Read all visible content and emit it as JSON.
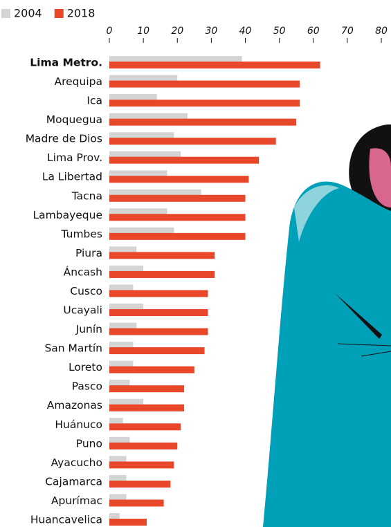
{
  "chart_data": {
    "type": "bar",
    "orientation": "horizontal",
    "categories": [
      "Lima Metro.",
      "Arequipa",
      "Ica",
      "Moquegua",
      "Madre de Dios",
      "Lima Prov.",
      "La Libertad",
      "Tacna",
      "Lambayeque",
      "Tumbes",
      "Piura",
      "Áncash",
      "Cusco",
      "Ucayali",
      "Junín",
      "San Martín",
      "Loreto",
      "Pasco",
      "Amazonas",
      "Huánuco",
      "Puno",
      "Ayacucho",
      "Cajamarca",
      "Apurímac",
      "Huancavelica"
    ],
    "series": [
      {
        "name": "2004",
        "color": "#d4d4d4",
        "values": [
          39,
          20,
          14,
          23,
          19,
          21,
          17,
          27,
          17,
          19,
          8,
          10,
          7,
          10,
          8,
          7,
          7,
          6,
          10,
          4,
          6,
          5,
          5,
          5,
          3
        ]
      },
      {
        "name": "2018",
        "color": "#e8472a",
        "values": [
          62,
          56,
          56,
          55,
          49,
          44,
          41,
          40,
          40,
          40,
          31,
          31,
          29,
          29,
          29,
          28,
          25,
          22,
          22,
          21,
          20,
          19,
          18,
          16,
          11
        ]
      }
    ],
    "xlim": [
      0,
      80
    ],
    "xticks": [
      0,
      10,
      20,
      30,
      40,
      50,
      60,
      70,
      80
    ],
    "grid": false
  }
}
